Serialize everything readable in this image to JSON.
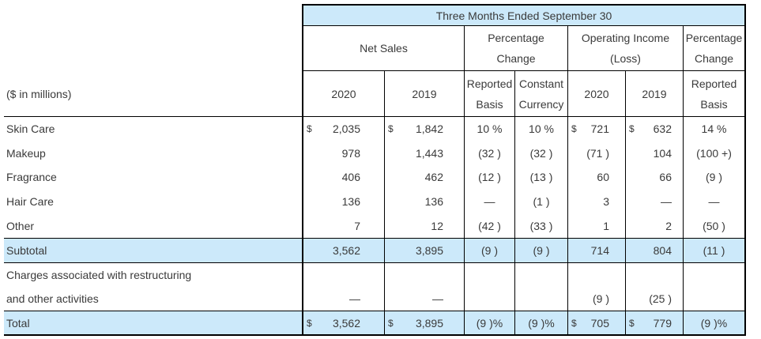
{
  "title": "Three Months Ended September 30",
  "corner_label": "($ in millions)",
  "group_headers": {
    "net_sales": "Net Sales",
    "pct_change_ns": "Percentage Change",
    "operating_income": "Operating Income (Loss)",
    "pct_change_oi": "Percentage Change"
  },
  "col_headers": {
    "ns_2020": "2020",
    "ns_2019": "2019",
    "reported_basis": "Reported Basis",
    "constant_currency": "Constant Currency",
    "oi_2020": "2020",
    "oi_2019": "2019",
    "oi_reported_basis": "Reported Basis"
  },
  "rows": [
    {
      "label": "Skin Care",
      "ns2020_cur": "$",
      "ns2020": "2,035",
      "ns2019_cur": "$",
      "ns2019": "1,842",
      "pct_rep": "10 %",
      "pct_cc": "10 %",
      "oi2020_cur": "$",
      "oi2020": "721",
      "oi2019_cur": "$",
      "oi2019": "632",
      "oi_pct": "14 %"
    },
    {
      "label": "Makeup",
      "ns2020": "978",
      "ns2019": "1,443",
      "pct_rep": "(32 )",
      "pct_cc": "(32 )",
      "oi2020": "(71 )",
      "oi2019": "104",
      "oi_pct": "(100 +)"
    },
    {
      "label": "Fragrance",
      "ns2020": "406",
      "ns2019": "462",
      "pct_rep": "(12 )",
      "pct_cc": "(13 )",
      "oi2020": "60",
      "oi2019": "66",
      "oi_pct": "(9 )"
    },
    {
      "label": "Hair Care",
      "ns2020": "136",
      "ns2019": "136",
      "pct_rep": "—",
      "pct_cc": "(1 )",
      "oi2020": "3",
      "oi2019": "—",
      "oi_pct": "—"
    },
    {
      "label": "Other",
      "ns2020": "7",
      "ns2019": "12",
      "pct_rep": "(42 )",
      "pct_cc": "(33 )",
      "oi2020": "1",
      "oi2019": "2",
      "oi_pct": "(50 )"
    }
  ],
  "subtotal": {
    "label": "Subtotal",
    "ns2020": "3,562",
    "ns2019": "3,895",
    "pct_rep": "(9 )",
    "pct_cc": "(9 )",
    "oi2020": "714",
    "oi2019": "804",
    "oi_pct": "(11 )"
  },
  "charges": {
    "label_line1": "Charges associated with restructuring",
    "label_line2": "and other activities",
    "ns2020": "—",
    "ns2019": "—",
    "oi2020": "(9 )",
    "oi2019": "(25 )"
  },
  "total": {
    "label": "Total",
    "ns2020_cur": "$",
    "ns2020": "3,562",
    "ns2019_cur": "$",
    "ns2019": "3,895",
    "pct_rep": "(9 )%",
    "pct_cc": "(9 )%",
    "oi2020_cur": "$",
    "oi2020": "705",
    "oi2019_cur": "$",
    "oi2019": "779",
    "oi_pct": "(9 )%"
  },
  "colors": {
    "highlight_blue": "#cce9fa",
    "border": "#000000",
    "text": "#3a3a3a"
  }
}
